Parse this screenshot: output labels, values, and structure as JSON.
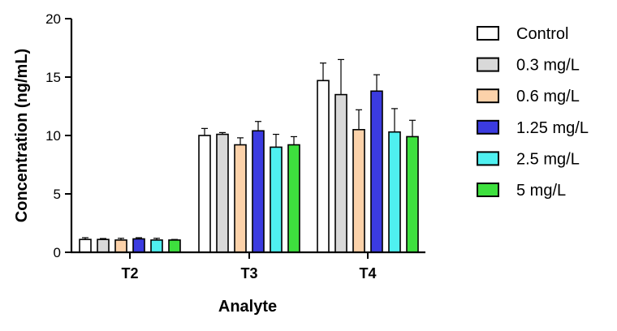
{
  "chart_data": {
    "type": "bar",
    "title": "",
    "xlabel": "Analyte",
    "ylabel": "Concentration (ng/mL)",
    "ylim": [
      0,
      20
    ],
    "yticks": [
      0,
      5,
      10,
      15,
      20
    ],
    "categories": [
      "T2",
      "T3",
      "T4"
    ],
    "legend_position": "right",
    "error_bars": true,
    "series": [
      {
        "name": "Control",
        "color": "#ffffff",
        "values": [
          1.1,
          10.0,
          14.7
        ],
        "errors": [
          0.15,
          0.6,
          1.5
        ]
      },
      {
        "name": "0.3 mg/L",
        "color": "#d9d9d9",
        "values": [
          1.1,
          10.1,
          13.5
        ],
        "errors": [
          0.08,
          0.15,
          3.0
        ]
      },
      {
        "name": "0.6 mg/L",
        "color": "#fcd2aa",
        "values": [
          1.05,
          9.2,
          10.5
        ],
        "errors": [
          0.15,
          0.6,
          1.7
        ]
      },
      {
        "name": "1.25 mg/L",
        "color": "#3b3be0",
        "values": [
          1.15,
          10.4,
          13.8
        ],
        "errors": [
          0.1,
          0.8,
          1.4
        ]
      },
      {
        "name": "2.5 mg/L",
        "color": "#4ff0f0",
        "values": [
          1.05,
          9.0,
          10.3
        ],
        "errors": [
          0.15,
          1.1,
          2.0
        ]
      },
      {
        "name": "5 mg/L",
        "color": "#3ee03e",
        "values": [
          1.05,
          9.2,
          9.9
        ],
        "errors": [
          0.05,
          0.7,
          1.4
        ]
      }
    ]
  }
}
